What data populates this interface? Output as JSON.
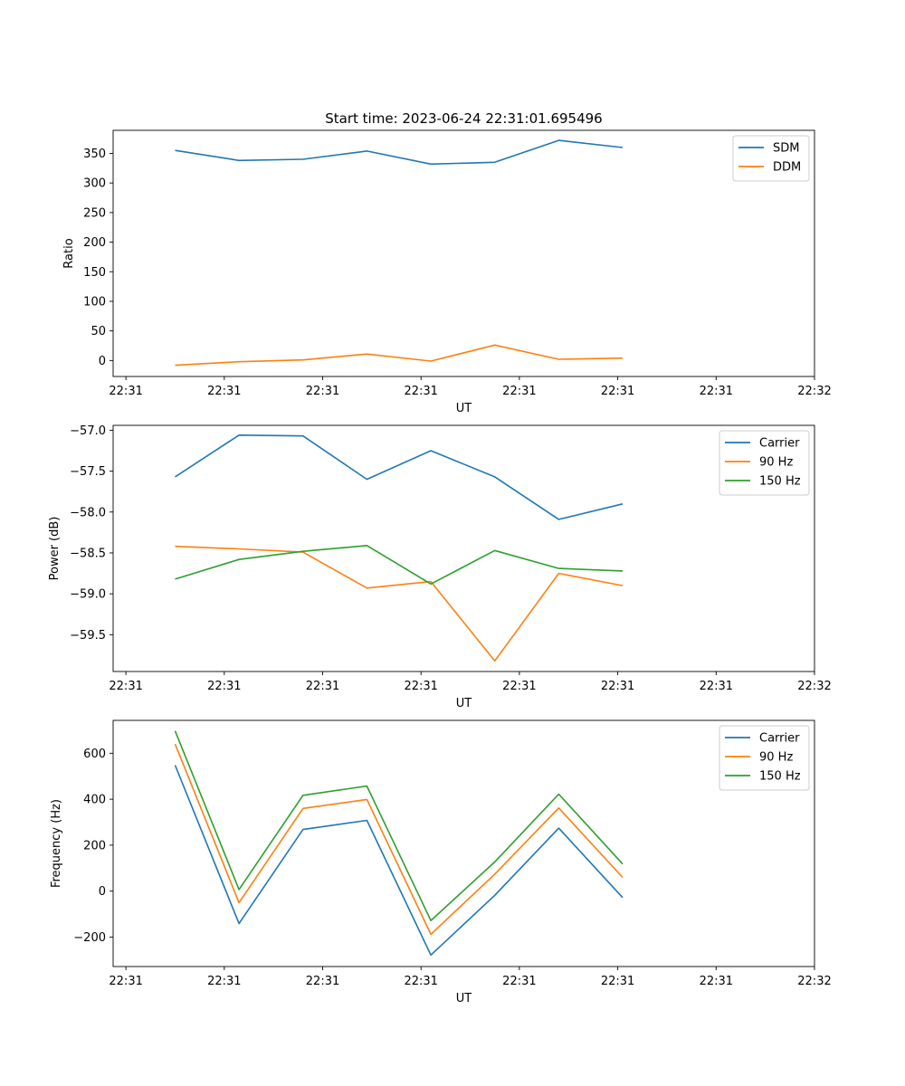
{
  "figure": {
    "title": "Start time: 2023-06-24 22:31:01.695496"
  },
  "chart_data": [
    {
      "type": "line",
      "title": "Start time: 2023-06-24 22:31:01.695496",
      "xlabel": "UT",
      "ylabel": "Ratio",
      "x_ticks": [
        "22:31",
        "22:31",
        "22:31",
        "22:31",
        "22:31",
        "22:31",
        "22:31",
        "22:32"
      ],
      "x_tick_seconds": [
        0,
        1,
        2,
        3,
        4,
        5,
        6,
        7
      ],
      "xlim": [
        -0.13,
        7.0
      ],
      "yticks": [
        0,
        50,
        100,
        150,
        200,
        250,
        300,
        350
      ],
      "ylim": [
        -27,
        389
      ],
      "legend": "top-right",
      "x": [
        0.5,
        1.15,
        1.8,
        2.45,
        3.1,
        3.75,
        4.4,
        5.05
      ],
      "series": [
        {
          "name": "SDM",
          "color": "#1f77b4",
          "values": [
            355,
            338,
            340,
            354,
            332,
            335,
            372,
            360
          ]
        },
        {
          "name": "DDM",
          "color": "#ff7f0e",
          "values": [
            -8,
            -2,
            1,
            11,
            -1,
            26,
            2,
            4
          ]
        }
      ]
    },
    {
      "type": "line",
      "title": "",
      "xlabel": "UT",
      "ylabel": "Power (dB)",
      "x_ticks": [
        "22:31",
        "22:31",
        "22:31",
        "22:31",
        "22:31",
        "22:31",
        "22:31",
        "22:32"
      ],
      "x_tick_seconds": [
        0,
        1,
        2,
        3,
        4,
        5,
        6,
        7
      ],
      "xlim": [
        -0.13,
        7.0
      ],
      "yticks": [
        -57.0,
        -57.5,
        -58.0,
        -58.5,
        -59.0,
        -59.5
      ],
      "ytick_labels": [
        "−57.0",
        "−57.5",
        "−58.0",
        "−58.5",
        "−59.0",
        "−59.5"
      ],
      "ylim": [
        -59.95,
        -56.94
      ],
      "legend": "top-right",
      "x": [
        0.5,
        1.15,
        1.8,
        2.45,
        3.1,
        3.75,
        4.4,
        5.05
      ],
      "series": [
        {
          "name": "Carrier",
          "color": "#1f77b4",
          "values": [
            -57.57,
            -57.06,
            -57.07,
            -57.6,
            -57.25,
            -57.57,
            -58.09,
            -57.9
          ]
        },
        {
          "name": "90 Hz",
          "color": "#ff7f0e",
          "values": [
            -58.42,
            -58.45,
            -58.49,
            -58.93,
            -58.85,
            -59.82,
            -58.75,
            -58.9
          ]
        },
        {
          "name": "150 Hz",
          "color": "#2ca02c",
          "values": [
            -58.82,
            -58.58,
            -58.48,
            -58.41,
            -58.88,
            -58.47,
            -58.69,
            -58.72
          ]
        }
      ]
    },
    {
      "type": "line",
      "title": "",
      "xlabel": "UT",
      "ylabel": "Frequency (Hz)",
      "x_ticks": [
        "22:31",
        "22:31",
        "22:31",
        "22:31",
        "22:31",
        "22:31",
        "22:31",
        "22:32"
      ],
      "x_tick_seconds": [
        0,
        1,
        2,
        3,
        4,
        5,
        6,
        7
      ],
      "xlim": [
        -0.13,
        7.0
      ],
      "yticks": [
        -200,
        0,
        200,
        400,
        600
      ],
      "ytick_labels": [
        "−200",
        "0",
        "200",
        "400",
        "600"
      ],
      "ylim": [
        -328,
        743
      ],
      "legend": "top-right",
      "x": [
        0.5,
        1.15,
        1.8,
        2.45,
        3.1,
        3.75,
        4.4,
        5.05
      ],
      "series": [
        {
          "name": "Carrier",
          "color": "#1f77b4",
          "values": [
            548,
            -141,
            268,
            308,
            -278,
            -18,
            274,
            -28
          ]
        },
        {
          "name": "90 Hz",
          "color": "#ff7f0e",
          "values": [
            640,
            -50,
            360,
            399,
            -188,
            74,
            362,
            60
          ]
        },
        {
          "name": "150 Hz",
          "color": "#2ca02c",
          "values": [
            697,
            7,
            417,
            457,
            -128,
            127,
            422,
            118
          ]
        }
      ]
    }
  ]
}
